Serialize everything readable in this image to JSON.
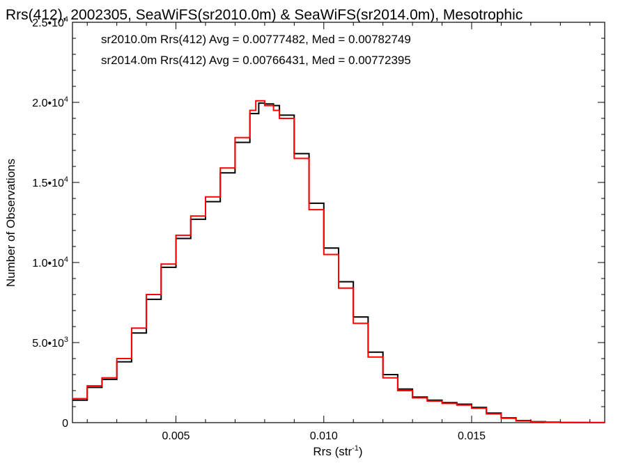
{
  "chart_data": {
    "type": "line",
    "title": "Rrs(412), 2002305, SeaWiFS(sr2010.0m) & SeaWiFS(sr2014.0m), Mesotrophic",
    "xlabel_main": "Rrs (str",
    "xlabel_sup": "-1",
    "xlabel_close": ")",
    "ylabel": "Number of Observations",
    "xlim": [
      0.0015,
      0.0195
    ],
    "ylim": [
      0,
      25000
    ],
    "x_ticks": [
      {
        "value": 0.005,
        "label": "0.005"
      },
      {
        "value": 0.01,
        "label": "0.010"
      },
      {
        "value": 0.015,
        "label": "0.015"
      }
    ],
    "y_ticks": [
      {
        "value": 0,
        "base": "0",
        "exp": ""
      },
      {
        "value": 5000,
        "base": "5.0•10",
        "exp": "3"
      },
      {
        "value": 10000,
        "base": "1.0•10",
        "exp": "4"
      },
      {
        "value": 15000,
        "base": "1.5•10",
        "exp": "4"
      },
      {
        "value": 20000,
        "base": "2.0•10",
        "exp": "4"
      },
      {
        "value": 25000,
        "base": "2.5•10",
        "exp": "4"
      }
    ],
    "annotations": [
      {
        "text": "sr2010.0m Rrs(412) Avg = 0.00777482, Med = 0.00782749",
        "color": "#000000"
      },
      {
        "text": "sr2014.0m Rrs(412) Avg = 0.00766431, Med = 0.00772395",
        "color": "#ff0000"
      }
    ],
    "series": [
      {
        "color": "#000000",
        "x": [
          0.0015,
          0.002,
          0.0025,
          0.003,
          0.0035,
          0.004,
          0.0045,
          0.005,
          0.0055,
          0.006,
          0.0065,
          0.007,
          0.0075,
          0.0078,
          0.008,
          0.0083,
          0.0085,
          0.009,
          0.0095,
          0.01,
          0.0105,
          0.011,
          0.0115,
          0.012,
          0.0125,
          0.013,
          0.0135,
          0.014,
          0.0145,
          0.015,
          0.0155,
          0.016,
          0.0165,
          0.017,
          0.0175,
          0.018,
          0.0185,
          0.019,
          0.0195
        ],
        "y": [
          1400,
          2200,
          2700,
          3800,
          5600,
          7700,
          9700,
          11500,
          12700,
          13800,
          15600,
          17500,
          19300,
          19950,
          19900,
          19800,
          19200,
          16800,
          13700,
          10900,
          8800,
          6600,
          4400,
          3000,
          2100,
          1600,
          1400,
          1250,
          1150,
          950,
          600,
          300,
          130,
          60,
          30,
          15,
          8,
          4,
          2
        ]
      },
      {
        "color": "#ff0000",
        "x": [
          0.0015,
          0.002,
          0.0025,
          0.003,
          0.0035,
          0.004,
          0.0045,
          0.005,
          0.0055,
          0.006,
          0.0065,
          0.007,
          0.0075,
          0.0077,
          0.008,
          0.0083,
          0.0085,
          0.009,
          0.0095,
          0.01,
          0.0105,
          0.011,
          0.0115,
          0.012,
          0.0125,
          0.013,
          0.0135,
          0.014,
          0.0145,
          0.015,
          0.0155,
          0.016,
          0.0165,
          0.017,
          0.0175,
          0.018,
          0.0185,
          0.019,
          0.0195
        ],
        "y": [
          1500,
          2300,
          2800,
          4000,
          5900,
          8000,
          9900,
          11700,
          12900,
          14100,
          15900,
          17800,
          19500,
          20100,
          19800,
          19500,
          19000,
          16500,
          13300,
          10500,
          8400,
          6200,
          4100,
          2800,
          2000,
          1550,
          1350,
          1200,
          1100,
          900,
          550,
          270,
          110,
          50,
          25,
          12,
          6,
          3,
          2
        ]
      }
    ]
  }
}
